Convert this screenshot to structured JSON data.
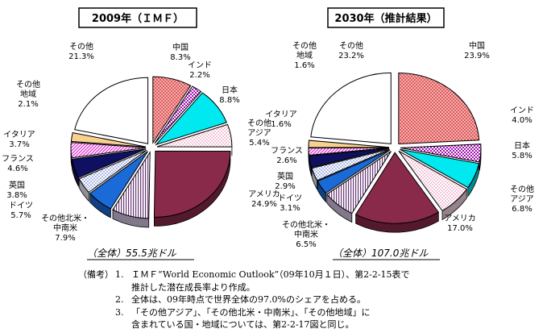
{
  "chart_data": [
    {
      "type": "pie",
      "title": "2009年（ＩＭＦ）",
      "total_label": "（全体）55.5兆ドル",
      "slices": [
        {
          "label": [
            "中国"
          ],
          "value": 8.3,
          "value_label": "8.3%",
          "color": "#e08a8a",
          "pattern": "dots-red"
        },
        {
          "label": [
            "インド"
          ],
          "value": 2.2,
          "value_label": "2.2%",
          "color": "#c030c0",
          "pattern": "check-purple"
        },
        {
          "label": [
            "日本"
          ],
          "value": 8.8,
          "value_label": "8.8%",
          "color": "#00e8f0",
          "pattern": "solid"
        },
        {
          "label": [
            "その他",
            "アジア"
          ],
          "value": 5.4,
          "value_label": "5.4%",
          "color": "#f8d8e8",
          "pattern": "dots-pink"
        },
        {
          "label": [
            "アメリカ"
          ],
          "value": 24.9,
          "value_label": "24.9%",
          "color": "#8a2a4a",
          "pattern": "solid"
        },
        {
          "label": [
            "その他北米・",
            "中南米"
          ],
          "value": 7.9,
          "value_label": "7.9%",
          "color": "#d8c8e8",
          "pattern": "vlines"
        },
        {
          "label": [
            "ドイツ"
          ],
          "value": 5.7,
          "value_label": "5.7%",
          "color": "#1a6ad8",
          "pattern": "solid"
        },
        {
          "label": [
            "英国"
          ],
          "value": 3.8,
          "value_label": "3.8%",
          "color": "#f0f0ff",
          "pattern": "dots-blue"
        },
        {
          "label": [
            "フランス"
          ],
          "value": 4.6,
          "value_label": "4.6%",
          "color": "#101060",
          "pattern": "solid"
        },
        {
          "label": [
            "イタリア"
          ],
          "value": 3.7,
          "value_label": "3.7%",
          "color": "#e850e0",
          "pattern": "diag-magenta"
        },
        {
          "label": [
            "その他",
            "地域"
          ],
          "value": 2.1,
          "value_label": "2.1%",
          "color": "#f8d090",
          "pattern": "solid"
        },
        {
          "label": [
            "その他"
          ],
          "value": 21.3,
          "value_label": "21.3%",
          "color": "#ffffff",
          "pattern": "solid"
        }
      ]
    },
    {
      "type": "pie",
      "title": "2030年（推計結果）",
      "total_label": "（全体）107.0兆ドル",
      "slices": [
        {
          "label": [
            "中国"
          ],
          "value": 23.9,
          "value_label": "23.9%",
          "color": "#e08a8a",
          "pattern": "dots-red"
        },
        {
          "label": [
            "インド"
          ],
          "value": 4.0,
          "value_label": "4.0%",
          "color": "#c030c0",
          "pattern": "check-purple"
        },
        {
          "label": [
            "日本"
          ],
          "value": 5.8,
          "value_label": "5.8%",
          "color": "#00e8f0",
          "pattern": "solid"
        },
        {
          "label": [
            "その他",
            "アジア"
          ],
          "value": 6.8,
          "value_label": "6.8%",
          "color": "#f8d8e8",
          "pattern": "dots-pink"
        },
        {
          "label": [
            "アメリカ"
          ],
          "value": 17.0,
          "value_label": "17.0%",
          "color": "#8a2a4a",
          "pattern": "solid"
        },
        {
          "label": [
            "その他北米・",
            "中南米"
          ],
          "value": 6.5,
          "value_label": "6.5%",
          "color": "#d8c8e8",
          "pattern": "vlines"
        },
        {
          "label": [
            "ドイツ"
          ],
          "value": 3.1,
          "value_label": "3.1%",
          "color": "#1a6ad8",
          "pattern": "solid"
        },
        {
          "label": [
            "英国"
          ],
          "value": 2.9,
          "value_label": "2.9%",
          "color": "#f0f0ff",
          "pattern": "dots-blue"
        },
        {
          "label": [
            "フランス"
          ],
          "value": 2.6,
          "value_label": "2.6%",
          "color": "#101060",
          "pattern": "solid"
        },
        {
          "label": [
            "イタリア"
          ],
          "value": 1.6,
          "value_label": "1.6%",
          "color": "#e850e0",
          "pattern": "diag-magenta"
        },
        {
          "label": [
            "その他",
            "地域"
          ],
          "value": 1.6,
          "value_label": "1.6%",
          "color": "#f8d090",
          "pattern": "solid"
        },
        {
          "label": [
            "その他"
          ],
          "value": 23.2,
          "value_label": "23.2%",
          "color": "#ffffff",
          "pattern": "solid"
        }
      ]
    }
  ],
  "notes": {
    "heading": "（備考）",
    "items": [
      {
        "num": "1.",
        "lines": [
          "ＩＭＦ“World Economic Outlook”（09年10月１日）、第2-2-15表で",
          "推計した潜在成長率より作成。"
        ]
      },
      {
        "num": "2.",
        "lines": [
          "全体は、09年時点で世界全体の97.0%のシェアを占める。"
        ]
      },
      {
        "num": "3.",
        "lines": [
          "「その他アジア」、「その他北米・中南米」、「その他地域」に",
          "含まれている国・地域については、第2-2-17図と同じ。"
        ]
      }
    ]
  }
}
